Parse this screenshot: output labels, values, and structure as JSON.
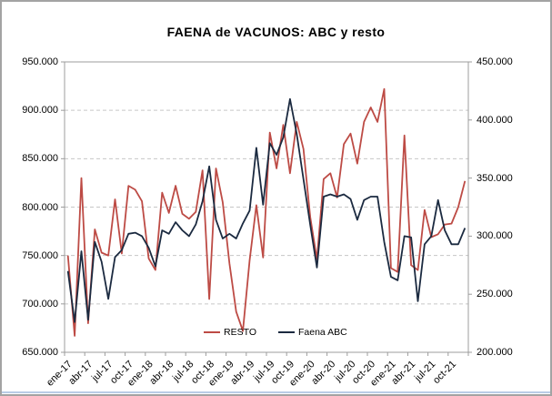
{
  "title": "FAENA de VACUNOS: ABC y resto",
  "axes": {
    "left": {
      "tick_labels": [
        "950.000",
        "900.000",
        "850.000",
        "800.000",
        "750.000",
        "700.000",
        "650.000"
      ]
    },
    "right": {
      "tick_labels": [
        "450.000",
        "400.000",
        "350.000",
        "300.000",
        "250.000",
        "200.000"
      ]
    },
    "x": {
      "visible_labels": [
        "ene-17",
        "abr-17",
        "jul-17",
        "oct-17",
        "ene-18",
        "abr-18",
        "jul-18",
        "oct-18",
        "ene-19",
        "abr-19",
        "jul-19",
        "oct-19",
        "ene-20",
        "abr-20",
        "jul-20",
        "oct-20",
        "ene-21",
        "abr-21",
        "jul-21",
        "oct-21"
      ]
    }
  },
  "legend": [
    {
      "label": "RESTO",
      "color": "#bd4b45"
    },
    {
      "label": "Faena ABC",
      "color": "#1b2a40"
    }
  ],
  "colors": {
    "resto": "#bd4b45",
    "faena_abc": "#1b2a40",
    "gridline": "#c6c6c6",
    "plot_border": "#9c9c9c"
  },
  "chart_data": {
    "type": "line",
    "title": "FAENA de VACUNOS: ABC y resto",
    "grid": "horizontal-dashed",
    "legend_position": "bottom-center-inside",
    "left_ylim": [
      650000,
      950000
    ],
    "right_ylim": [
      200000,
      450000
    ],
    "x": [
      "ene-17",
      "feb-17",
      "mar-17",
      "abr-17",
      "may-17",
      "jun-17",
      "jul-17",
      "ago-17",
      "sep-17",
      "oct-17",
      "nov-17",
      "dic-17",
      "ene-18",
      "feb-18",
      "mar-18",
      "abr-18",
      "may-18",
      "jun-18",
      "jul-18",
      "ago-18",
      "sep-18",
      "oct-18",
      "nov-18",
      "dic-18",
      "ene-19",
      "feb-19",
      "mar-19",
      "abr-19",
      "may-19",
      "jun-19",
      "jul-19",
      "ago-19",
      "sep-19",
      "oct-19",
      "nov-19",
      "dic-19",
      "ene-20",
      "feb-20",
      "mar-20",
      "abr-20",
      "may-20",
      "jun-20",
      "jul-20",
      "ago-20",
      "sep-20",
      "oct-20",
      "nov-20",
      "dic-20",
      "ene-21",
      "feb-21",
      "mar-21",
      "abr-21",
      "may-21",
      "jun-21",
      "jul-21",
      "ago-21",
      "sep-21",
      "oct-21",
      "nov-21",
      "dic-21"
    ],
    "series": [
      {
        "name": "RESTO",
        "axis": "left",
        "color": "#bd4b45",
        "values": [
          750000,
          667000,
          830000,
          680000,
          777000,
          753000,
          750000,
          808000,
          752000,
          822000,
          818000,
          806000,
          747000,
          735000,
          815000,
          794000,
          822000,
          793000,
          788000,
          795000,
          838000,
          705000,
          840000,
          805000,
          742000,
          692000,
          672000,
          745000,
          802000,
          748000,
          877000,
          840000,
          885000,
          835000,
          888000,
          860000,
          790000,
          746000,
          829000,
          835000,
          810000,
          865000,
          876000,
          845000,
          888000,
          903000,
          888000,
          922000,
          737000,
          733000,
          874000,
          740000,
          735000,
          797000,
          769000,
          772000,
          782000,
          783000,
          800000,
          827000
        ]
      },
      {
        "name": "Faena ABC",
        "axis": "right",
        "color": "#1b2a40",
        "values": [
          270000,
          226000,
          287000,
          228000,
          295000,
          278000,
          246000,
          282000,
          288000,
          302000,
          303000,
          300000,
          290000,
          274000,
          305000,
          302000,
          312000,
          305000,
          300000,
          310000,
          330000,
          360000,
          314000,
          298000,
          302000,
          298000,
          311000,
          322000,
          376000,
          327000,
          380000,
          370000,
          385000,
          418000,
          388000,
          349000,
          310000,
          273000,
          334000,
          336000,
          334000,
          336000,
          332000,
          314000,
          331000,
          334000,
          334000,
          295000,
          265000,
          262000,
          300000,
          299000,
          244000,
          293000,
          300000,
          331000,
          305000,
          293000,
          293000,
          307000
        ]
      }
    ]
  }
}
